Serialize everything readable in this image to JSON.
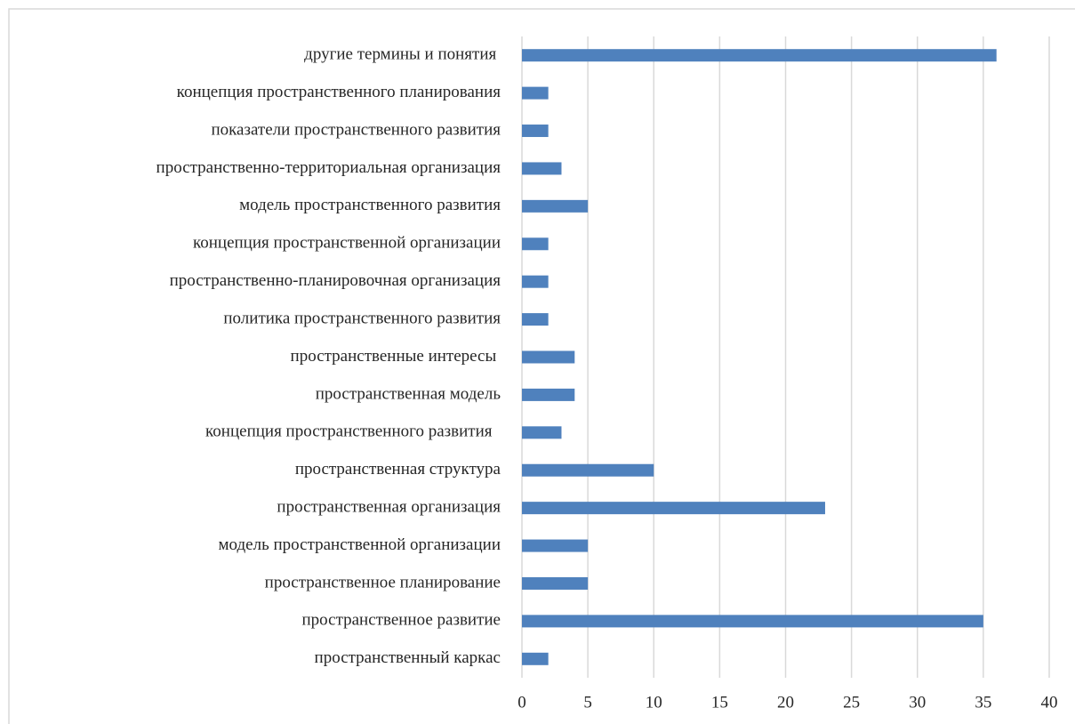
{
  "chart_data": {
    "type": "barh",
    "categories": [
      "другие термины и понятия ",
      "концепция пространственного планирования",
      "показатели пространственного развития",
      "пространственно-территориальная организация",
      "модель пространственного развития",
      "концепция пространственной организации",
      "пространственно-планировочная организация",
      "политика пространственного развития",
      "пространственные интересы ",
      "пространственная модель",
      "концепция пространственного развития  ",
      "пространственная структура",
      "пространственная организация",
      "модель пространственной организации",
      "пространственное планирование",
      "пространственное развитие",
      "пространственный каркас"
    ],
    "values": [
      36,
      2,
      2,
      3,
      5,
      2,
      2,
      2,
      4,
      4,
      3,
      10,
      23,
      5,
      5,
      35,
      2
    ],
    "color": "#4f81bd",
    "xlim": [
      0,
      40
    ],
    "xticks": [
      0,
      5,
      10,
      15,
      20,
      25,
      30,
      35,
      40
    ],
    "grid": true
  }
}
